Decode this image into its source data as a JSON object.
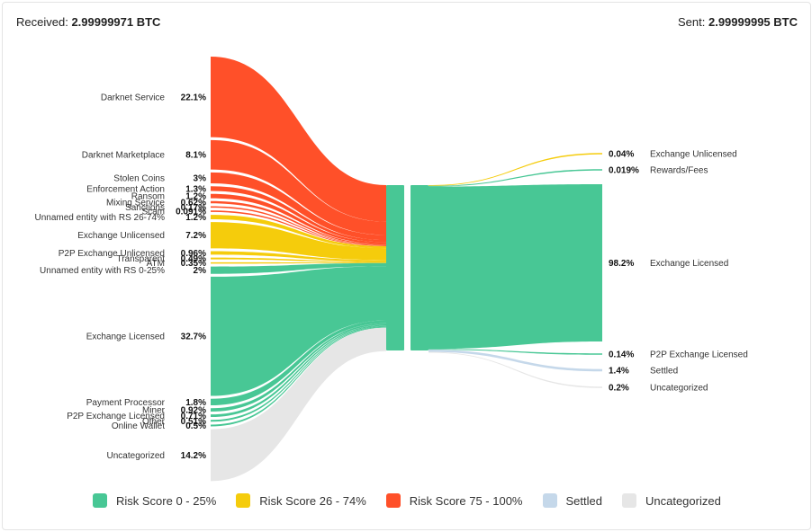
{
  "header": {
    "received_label": "Received:",
    "received_value": "2.99999971 BTC",
    "sent_label": "Sent:",
    "sent_value": "2.99999995 BTC"
  },
  "colors": {
    "risk_0_25": "#48c795",
    "risk_26_74": "#f5cc0c",
    "risk_75_100": "#ff5029",
    "settled": "#c5d8ea",
    "uncategorized": "#e6e6e6"
  },
  "legend": [
    {
      "label": "Risk Score 0 - 25%",
      "color_key": "risk_0_25"
    },
    {
      "label": "Risk Score 26 - 74%",
      "color_key": "risk_26_74"
    },
    {
      "label": "Risk Score 75 - 100%",
      "color_key": "risk_75_100"
    },
    {
      "label": "Settled",
      "color_key": "settled"
    },
    {
      "label": "Uncategorized",
      "color_key": "uncategorized"
    }
  ],
  "chart_data": {
    "type": "sankey",
    "unit": "%",
    "inflows": [
      {
        "name": "Darknet Service",
        "label": "22.1%",
        "value": 22.1,
        "risk": "risk_75_100"
      },
      {
        "name": "Darknet Marketplace",
        "label": "8.1%",
        "value": 8.1,
        "risk": "risk_75_100"
      },
      {
        "name": "Stolen Coins",
        "label": "3%",
        "value": 3,
        "risk": "risk_75_100"
      },
      {
        "name": "Enforcement Action",
        "label": "1.3%",
        "value": 1.3,
        "risk": "risk_75_100"
      },
      {
        "name": "Ransom",
        "label": "1.2%",
        "value": 1.2,
        "risk": "risk_75_100"
      },
      {
        "name": "Mixing Service",
        "label": "0.62%",
        "value": 0.62,
        "risk": "risk_75_100"
      },
      {
        "name": "Sanctions",
        "label": "0.17%",
        "value": 0.17,
        "risk": "risk_75_100"
      },
      {
        "name": "Scam",
        "label": "0.091%",
        "value": 0.091,
        "risk": "risk_75_100"
      },
      {
        "name": "Unnamed entity with RS 26-74%",
        "label": "1.2%",
        "value": 1.2,
        "risk": "risk_26_74"
      },
      {
        "name": "Exchange Unlicensed",
        "label": "7.2%",
        "value": 7.2,
        "risk": "risk_26_74"
      },
      {
        "name": "P2P Exchange Unlicensed",
        "label": "0.96%",
        "value": 0.96,
        "risk": "risk_26_74"
      },
      {
        "name": "Transparent",
        "label": "0.49%",
        "value": 0.49,
        "risk": "risk_26_74"
      },
      {
        "name": "ATM",
        "label": "0.35%",
        "value": 0.35,
        "risk": "risk_26_74"
      },
      {
        "name": "Unnamed entity with RS 0-25%",
        "label": "2%",
        "value": 2,
        "risk": "risk_0_25"
      },
      {
        "name": "Exchange Licensed",
        "label": "32.7%",
        "value": 32.7,
        "risk": "risk_0_25"
      },
      {
        "name": "Payment Processor",
        "label": "1.8%",
        "value": 1.8,
        "risk": "risk_0_25"
      },
      {
        "name": "Miner",
        "label": "0.92%",
        "value": 0.92,
        "risk": "risk_0_25"
      },
      {
        "name": "P2P Exchange Licensed",
        "label": "0.71%",
        "value": 0.71,
        "risk": "risk_0_25"
      },
      {
        "name": "Other",
        "label": "0.51%",
        "value": 0.51,
        "risk": "risk_0_25"
      },
      {
        "name": "Online Wallet",
        "label": "0.5%",
        "value": 0.5,
        "risk": "risk_0_25"
      },
      {
        "name": "Uncategorized",
        "label": "14.2%",
        "value": 14.2,
        "risk": "uncategorized"
      }
    ],
    "outflows": [
      {
        "name": "Exchange Unlicensed",
        "label": "0.04%",
        "value": 0.04,
        "risk": "risk_26_74"
      },
      {
        "name": "Rewards/Fees",
        "label": "0.019%",
        "value": 0.019,
        "risk": "risk_0_25"
      },
      {
        "name": "Exchange Licensed",
        "label": "98.2%",
        "value": 98.2,
        "risk": "risk_0_25"
      },
      {
        "name": "P2P Exchange Licensed",
        "label": "0.14%",
        "value": 0.14,
        "risk": "risk_0_25"
      },
      {
        "name": "Settled",
        "label": "1.4%",
        "value": 1.4,
        "risk": "settled"
      },
      {
        "name": "Uncategorized",
        "label": "0.2%",
        "value": 0.2,
        "risk": "uncategorized"
      }
    ]
  }
}
